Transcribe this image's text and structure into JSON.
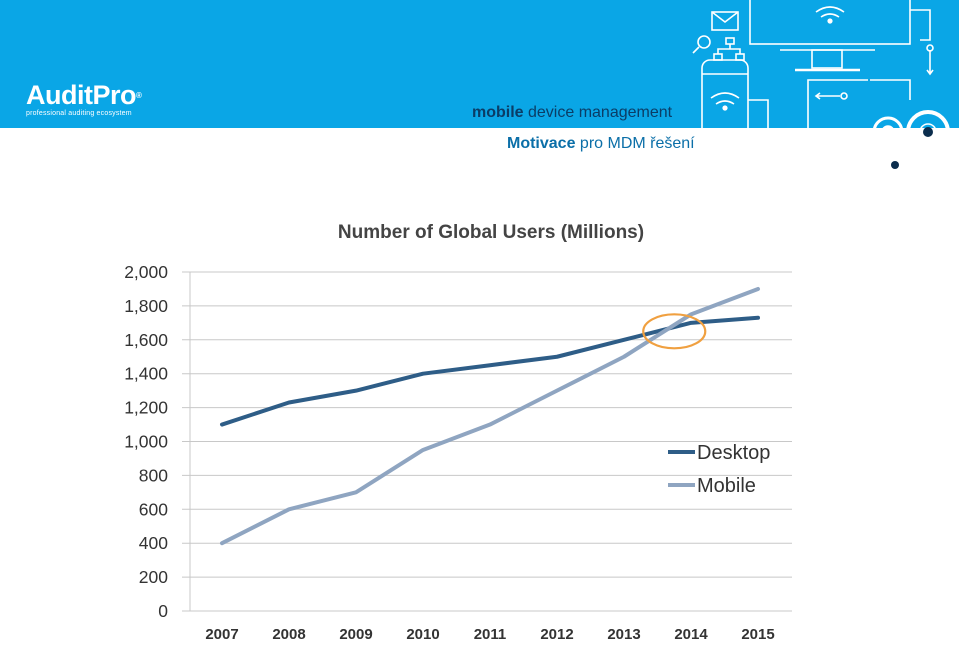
{
  "header": {
    "logo_name": "AuditPro",
    "logo_reg": "®",
    "logo_tagline": "professional auditing ecosystem",
    "line1_bold": "mobile",
    "line1_rest": " device management",
    "line2_bold": "Motivace",
    "line2_rest": " pro MDM řešení"
  },
  "colors": {
    "banner": "#0aa6e6",
    "desktop": "#2e5d87",
    "mobile": "#8fa5c1",
    "highlight": "#f0a040"
  },
  "chart_data": {
    "type": "line",
    "title": "Number of Global Users (Millions)",
    "categories": [
      "2007",
      "2008",
      "2009",
      "2010",
      "2011",
      "2012",
      "2013",
      "2014",
      "2015"
    ],
    "series": [
      {
        "name": "Desktop",
        "values": [
          1100,
          1230,
          1300,
          1400,
          1450,
          1500,
          1600,
          1700,
          1730
        ]
      },
      {
        "name": "Mobile",
        "values": [
          400,
          600,
          700,
          950,
          1100,
          1300,
          1500,
          1750,
          1900
        ]
      }
    ],
    "yticks": [
      "0",
      "200",
      "400",
      "600",
      "800",
      "1,000",
      "1,200",
      "1,400",
      "1,600",
      "1,800",
      "2,000"
    ],
    "ylim": [
      0,
      2000
    ],
    "grid": true,
    "legend": "right",
    "annotation": {
      "type": "circle",
      "x": "2013.75",
      "y": 1650
    }
  }
}
